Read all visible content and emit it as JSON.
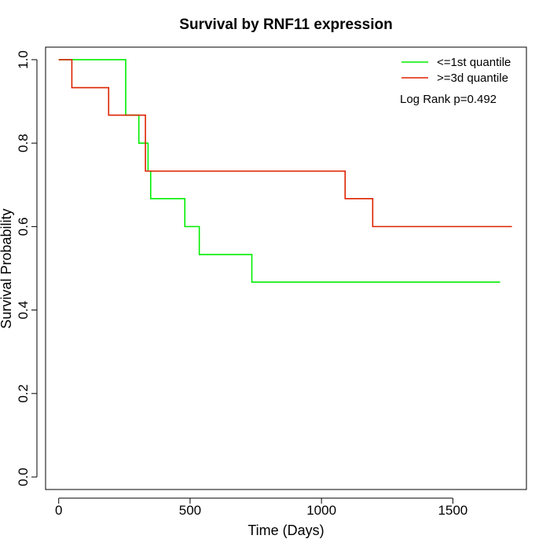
{
  "chart_data": {
    "type": "line",
    "title": "Survival by RNF11 expression",
    "xlabel": "Time (Days)",
    "ylabel": "Survival Probability",
    "xlim": [
      -50,
      1780
    ],
    "ylim": [
      -0.03,
      1.03
    ],
    "xticks": [
      0,
      500,
      1000,
      1500
    ],
    "yticks": [
      0.0,
      0.2,
      0.4,
      0.6,
      0.8,
      1.0
    ],
    "xtick_labels": [
      "0",
      "500",
      "1000",
      "1500"
    ],
    "ytick_labels": [
      "0.0",
      "0.2",
      "0.4",
      "0.6",
      "0.8",
      "1.0"
    ],
    "grid": false,
    "legend_position": "top-right",
    "annotation": "Log Rank p=0.492",
    "series": [
      {
        "name": "<=1st quantile",
        "color": "#00ee00",
        "step": true,
        "x": [
          0,
          255,
          305,
          340,
          350,
          480,
          535,
          735,
          1680
        ],
        "y": [
          1.0,
          0.867,
          0.8,
          0.733,
          0.667,
          0.6,
          0.533,
          0.467,
          0.467
        ]
      },
      {
        "name": ">=3d quantile",
        "color": "#dd2200",
        "step": true,
        "x": [
          0,
          50,
          190,
          330,
          1090,
          1195,
          1725
        ],
        "y": [
          1.0,
          0.933,
          0.867,
          0.733,
          0.667,
          0.6,
          0.6
        ]
      }
    ]
  }
}
